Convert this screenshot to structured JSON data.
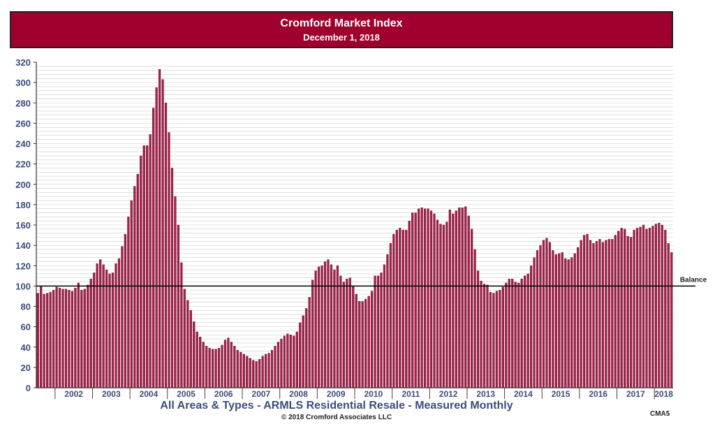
{
  "header": {
    "title": "Cromford Market Index",
    "subtitle": "December 1, 2018"
  },
  "footer": {
    "title": "All Areas & Types - ARMLS Residential Resale - Measured Monthly",
    "copyright": "© 2018 Cromford Associates LLC",
    "code": "CMA5"
  },
  "colors": {
    "banner": "#a0002e",
    "bar_fill": "#a3214a",
    "bar_stroke": "#6e1230",
    "axis_text": "#3c4d7a",
    "grid": "#cccccc",
    "balance_line": "#000000"
  },
  "chart_data": {
    "type": "bar",
    "title": "Cromford Market Index",
    "subtitle": "December 1, 2018",
    "xlabel": "",
    "ylabel": "",
    "ylim": [
      0,
      320
    ],
    "yticks": [
      0,
      20,
      40,
      60,
      80,
      100,
      120,
      140,
      160,
      180,
      200,
      220,
      240,
      260,
      280,
      300,
      320
    ],
    "grid": true,
    "x_tick_labels": [
      "2002",
      "2003",
      "2004",
      "2005",
      "2006",
      "2007",
      "2008",
      "2009",
      "2010",
      "2011",
      "2012",
      "2013",
      "2014",
      "2015",
      "2016",
      "2017",
      "2018"
    ],
    "start_month": "2001-07",
    "end_month": "2018-12",
    "reference_line": {
      "value": 100,
      "label": "Balance"
    },
    "series": [
      {
        "values": [
          93,
          100,
          92,
          93,
          94,
          96,
          99,
          98,
          97,
          97,
          96,
          95,
          98,
          103,
          96,
          97,
          101,
          107,
          113,
          122,
          126,
          121,
          116,
          112,
          113,
          122,
          127,
          139,
          151,
          168,
          184,
          198,
          210,
          228,
          238,
          238,
          249,
          275,
          295,
          313,
          303,
          280,
          251,
          216,
          188,
          160,
          123,
          97,
          86,
          76,
          65,
          55,
          50,
          45,
          41,
          39,
          38,
          38,
          39,
          42,
          47,
          49,
          45,
          41,
          37,
          35,
          33,
          31,
          29,
          27,
          26,
          28,
          31,
          33,
          34,
          37,
          41,
          45,
          48,
          51,
          53,
          52,
          51,
          55,
          64,
          71,
          78,
          89,
          106,
          115,
          119,
          120,
          124,
          126,
          121,
          116,
          120,
          110,
          104,
          107,
          108,
          100,
          92,
          85,
          85,
          87,
          90,
          95,
          110,
          110,
          113,
          121,
          131,
          142,
          151,
          155,
          157,
          155,
          155,
          164,
          172,
          172,
          176,
          177,
          176,
          176,
          174,
          171,
          165,
          161,
          160,
          163,
          175,
          171,
          174,
          177,
          177,
          178,
          169,
          156,
          136,
          115,
          105,
          102,
          101,
          94,
          93,
          95,
          96,
          99,
          103,
          107,
          107,
          104,
          103,
          107,
          110,
          112,
          120,
          128,
          135,
          140,
          145,
          147,
          143,
          135,
          131,
          132,
          133,
          127,
          126,
          128,
          132,
          138,
          145,
          150,
          151,
          145,
          142,
          144,
          146,
          143,
          145,
          146,
          146,
          150,
          154,
          157,
          156,
          149,
          148,
          155,
          157,
          158,
          160,
          156,
          157,
          159,
          161,
          162,
          160,
          155,
          142,
          133
        ]
      }
    ]
  }
}
